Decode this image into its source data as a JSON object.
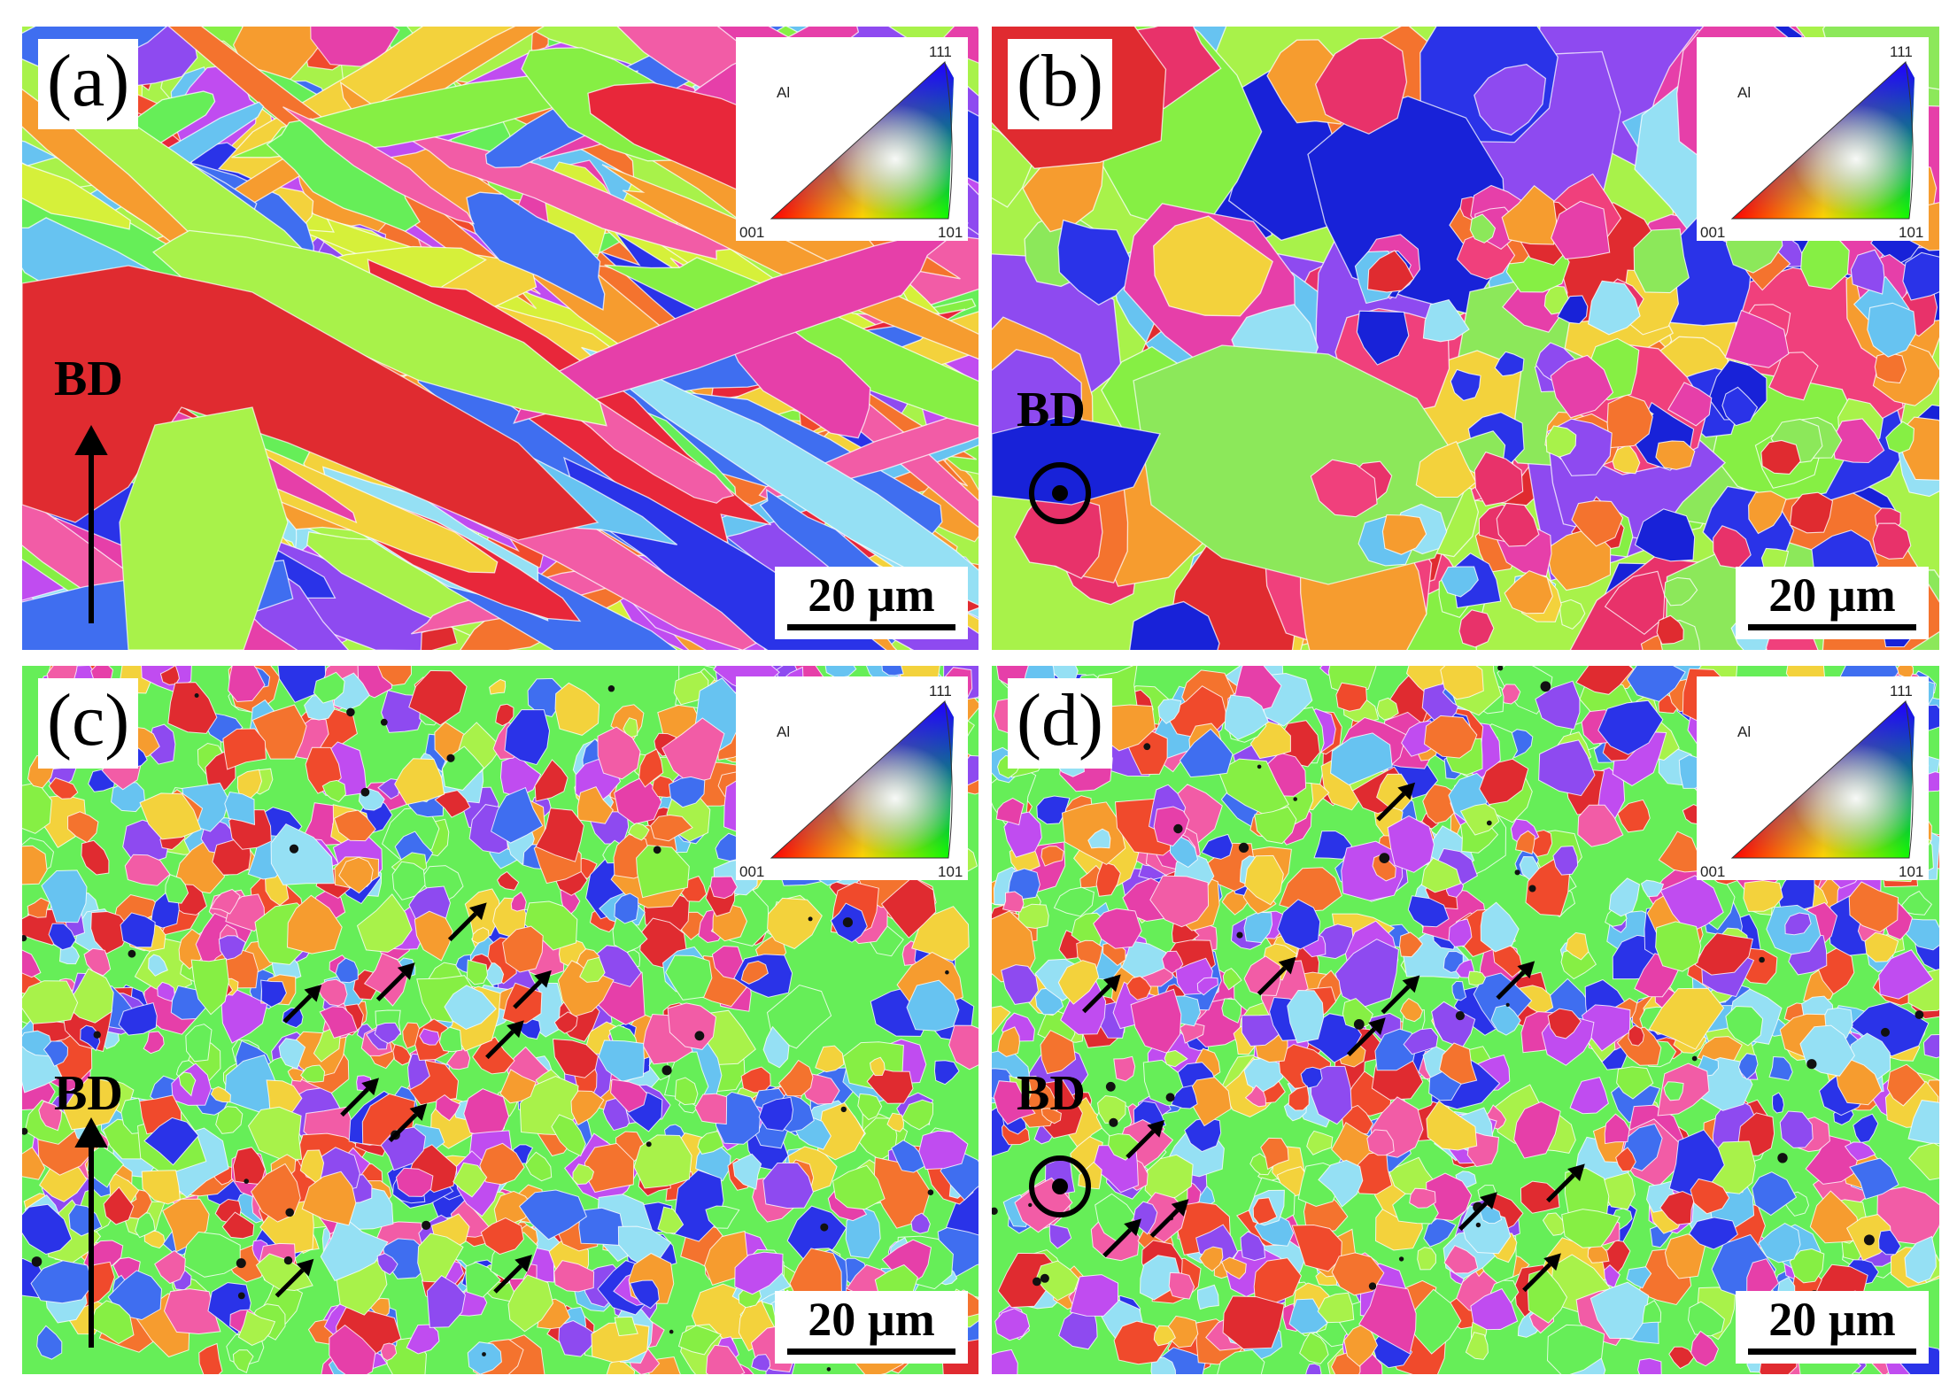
{
  "key": {
    "material": "Al",
    "c111": "111",
    "c001": "001",
    "c101": "101"
  },
  "bd_label": "BD",
  "scale_label": "20 µm",
  "panels": [
    {
      "id": "a",
      "label": "(a)",
      "grain_style": "columnar",
      "bd_marker": "arrow-up",
      "arrow_count": 0,
      "palette": [
        "#e02b30",
        "#e8273a",
        "#f04a2c",
        "#f4732e",
        "#f69c2f",
        "#f3d23c",
        "#d6f03a",
        "#a8f24a",
        "#86ef44",
        "#66ee58",
        "#95e0f4",
        "#67c3f1",
        "#3f6ef0",
        "#2a33e8",
        "#8e4af0",
        "#c04cf0",
        "#e63fa9",
        "#f25ca6"
      ]
    },
    {
      "id": "b",
      "label": "(b)",
      "grain_style": "coarse-equiaxed",
      "bd_marker": "circle-dot",
      "arrow_count": 0,
      "palette": [
        "#e02b30",
        "#e8326a",
        "#f0407c",
        "#e63fa9",
        "#f4732e",
        "#f69c2f",
        "#f3d23c",
        "#a8f24a",
        "#86ef44",
        "#8ce85a",
        "#95e0f4",
        "#67c3f1",
        "#2a33e8",
        "#1822d8",
        "#8e4af0"
      ]
    },
    {
      "id": "c",
      "label": "(c)",
      "grain_style": "fine-equiaxed",
      "bd_marker": "arrow-up",
      "arrow_count": 9,
      "palette": [
        "#e02b30",
        "#f04a2c",
        "#f4732e",
        "#f69c2f",
        "#f3d23c",
        "#a8f24a",
        "#86ef44",
        "#66ee58",
        "#95e0f4",
        "#67c3f1",
        "#3f6ef0",
        "#2a33e8",
        "#8e4af0",
        "#c04cf0",
        "#e63fa9",
        "#f25ca6"
      ]
    },
    {
      "id": "d",
      "label": "(d)",
      "grain_style": "fine-equiaxed",
      "bd_marker": "circle-dot",
      "arrow_count": 12,
      "palette": [
        "#e02b30",
        "#f04a2c",
        "#f4732e",
        "#f69c2f",
        "#f3d23c",
        "#a8f24a",
        "#86ef44",
        "#66ee58",
        "#95e0f4",
        "#67c3f1",
        "#3f6ef0",
        "#2a33e8",
        "#8e4af0",
        "#c04cf0",
        "#e63fa9",
        "#f25ca6"
      ]
    }
  ]
}
